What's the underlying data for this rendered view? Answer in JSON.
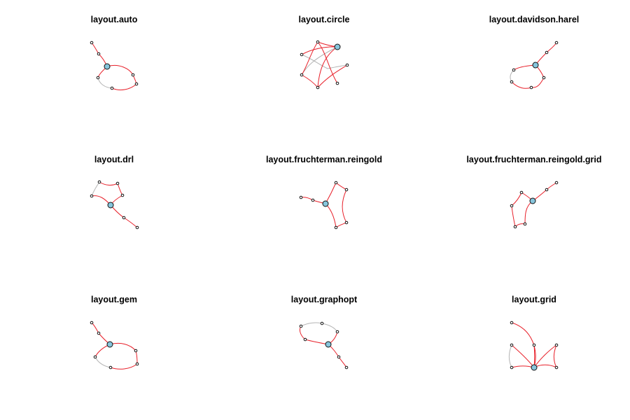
{
  "colors": {
    "edge_highlight": "#e8202a",
    "edge_plain": "#b4b4b4",
    "hub_fill": "#87c5dc",
    "node_stroke": "#111111",
    "small_node_fill": "#ffffff",
    "background": "#ffffff"
  },
  "panels": [
    {
      "title": "layout.auto"
    },
    {
      "title": "layout.circle"
    },
    {
      "title": "layout.davidson.harel"
    },
    {
      "title": "layout.drl"
    },
    {
      "title": "layout.fruchterman.reingold"
    },
    {
      "title": "layout.fruchterman.reingold.grid"
    },
    {
      "title": "layout.gem"
    },
    {
      "title": "layout.graphopt"
    },
    {
      "title": "layout.grid"
    }
  ]
}
